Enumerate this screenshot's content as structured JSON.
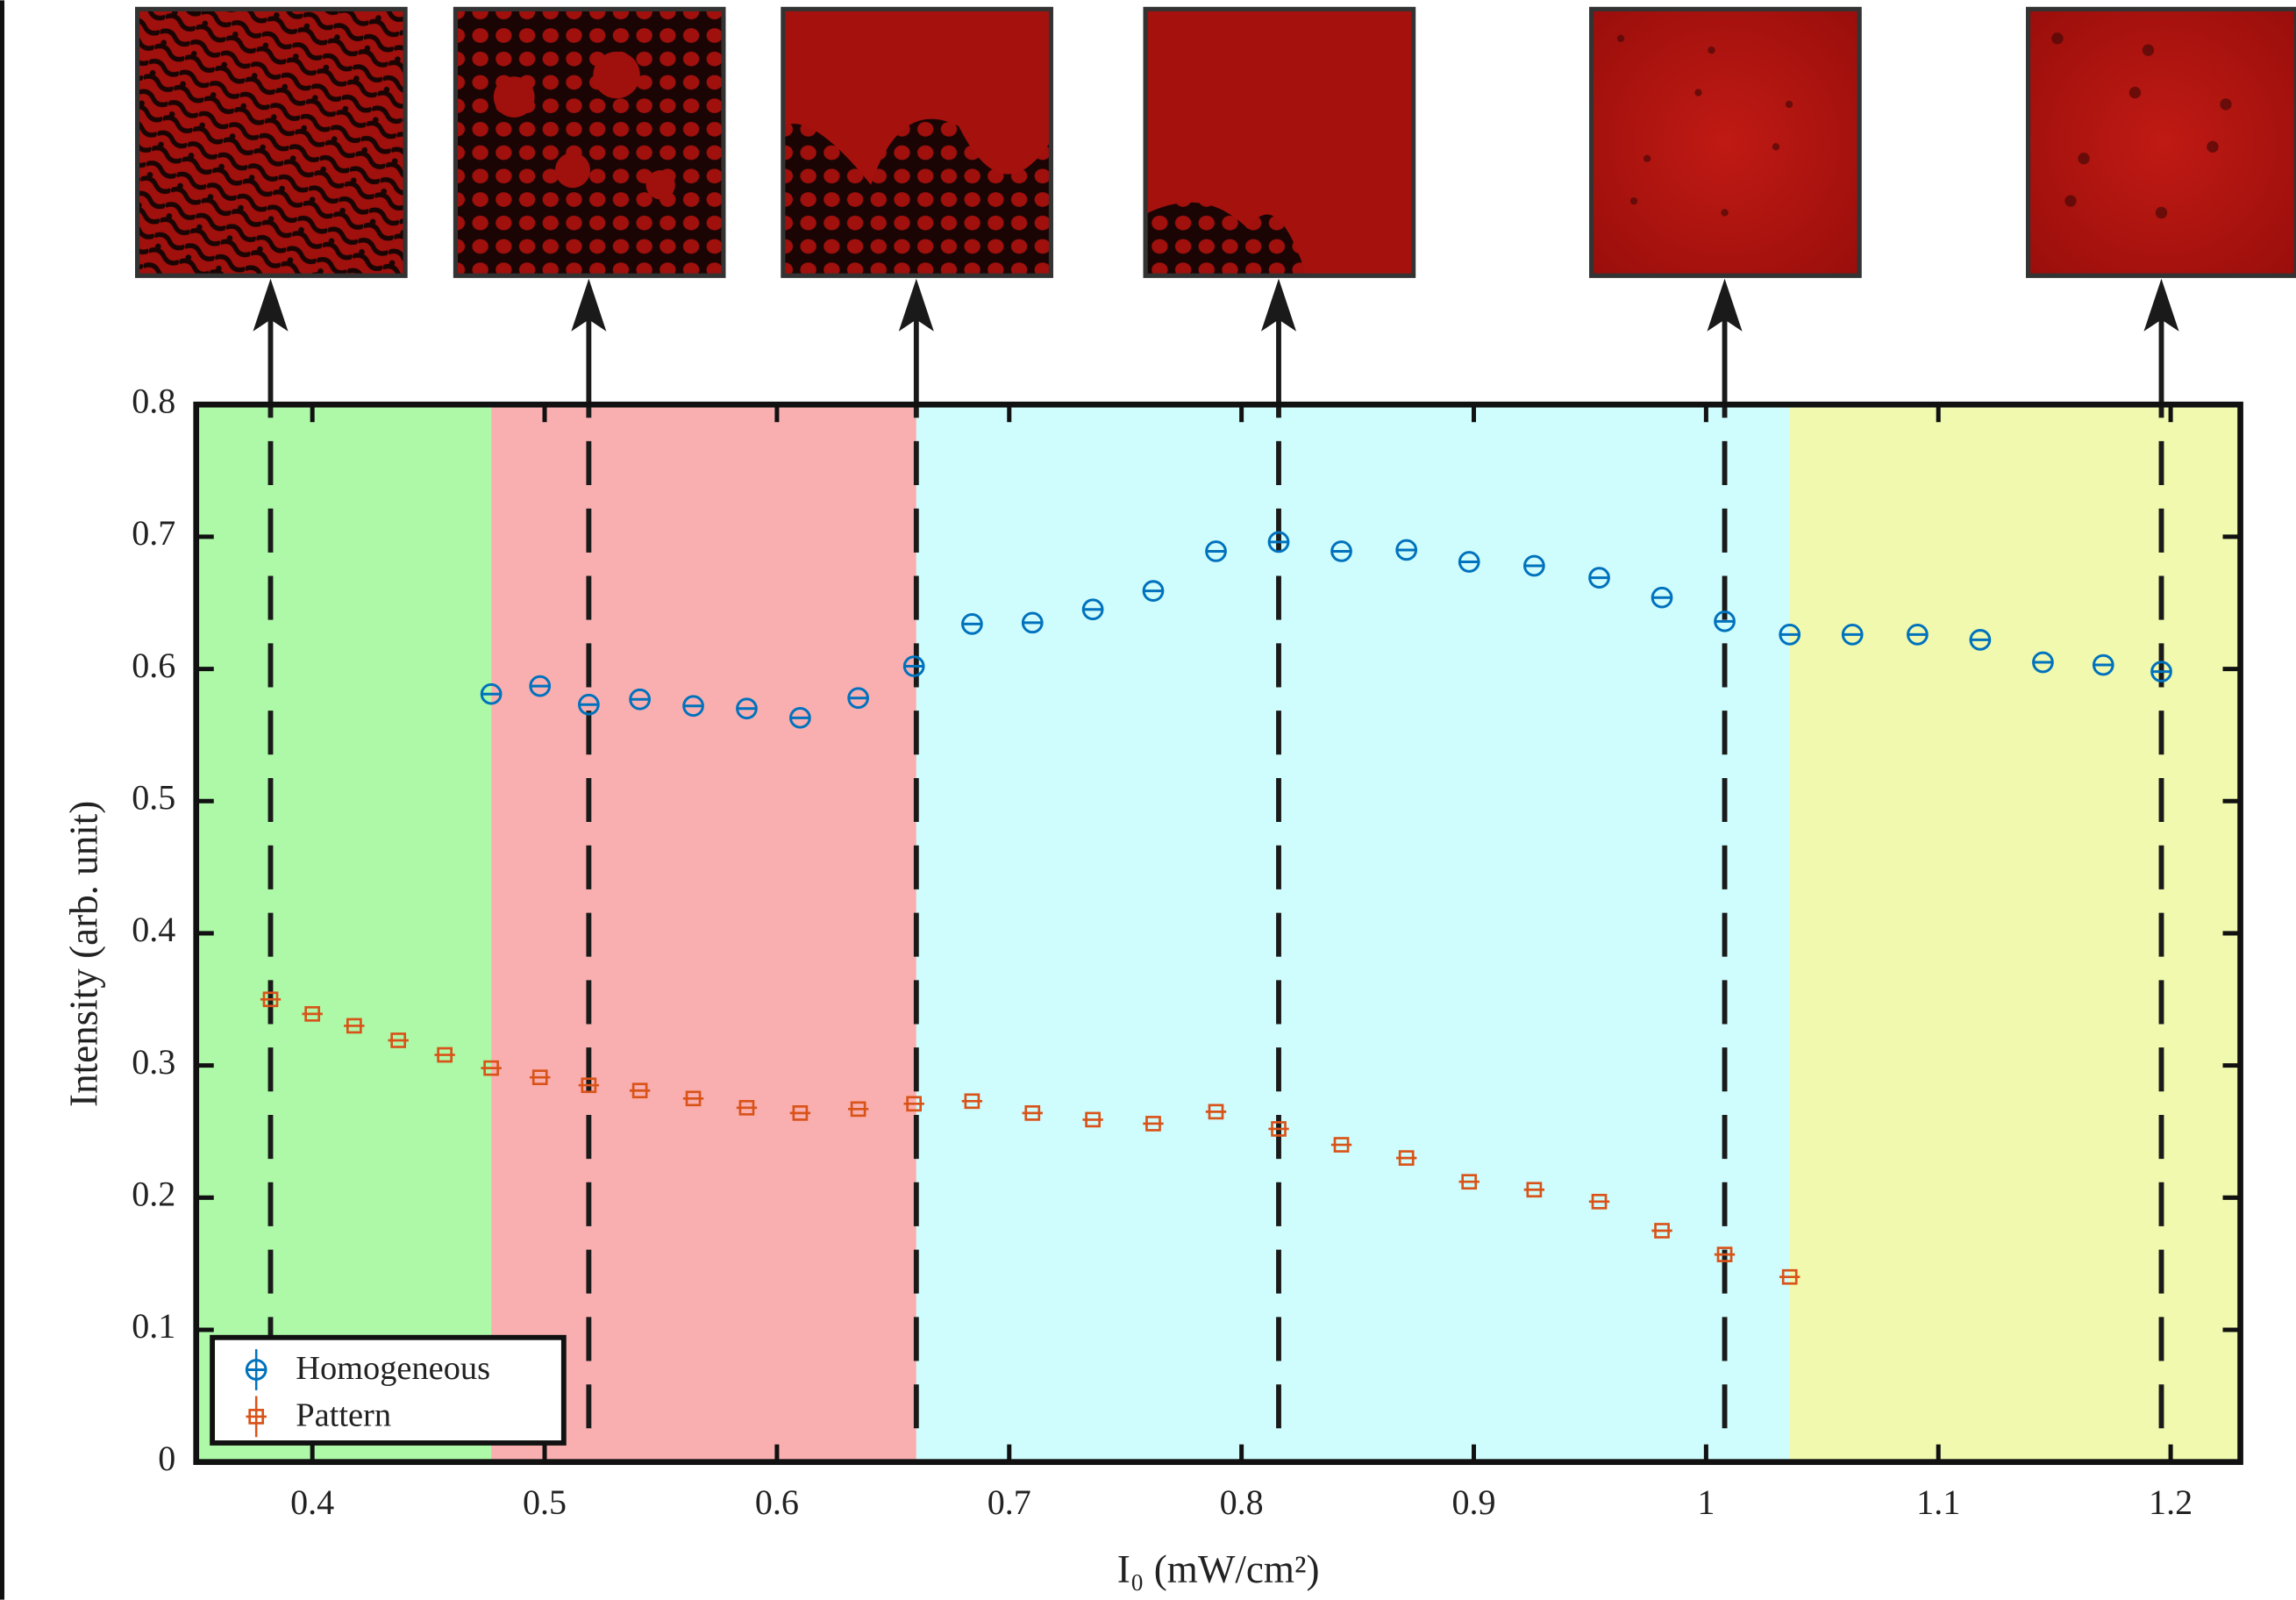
{
  "chart_data": {
    "type": "scatter",
    "x_label": "I₀ (mW/cm²)",
    "y_label": "Intensity (arb. unit)",
    "xlim": [
      0.35,
      1.23
    ],
    "ylim": [
      0,
      0.8
    ],
    "xticks": [
      0.4,
      0.5,
      0.6,
      0.7,
      0.8,
      0.9,
      1,
      1.1,
      1.2
    ],
    "yticks": [
      0,
      0.1,
      0.2,
      0.3,
      0.4,
      0.5,
      0.6,
      0.7,
      0.8
    ],
    "legend": "lower left",
    "regions": [
      {
        "xlim": [
          0.35,
          0.477
        ],
        "color": "#adf9a8"
      },
      {
        "xlim": [
          0.477,
          0.66
        ],
        "color": "#f9afaf"
      },
      {
        "xlim": [
          0.66,
          1.036
        ],
        "color": "#cffcfc"
      },
      {
        "xlim": [
          1.036,
          1.23
        ],
        "color": "#f0f9ae"
      }
    ],
    "markers": [
      0.382,
      0.519,
      0.66,
      0.816,
      1.008,
      1.196
    ],
    "series": [
      {
        "name": "Homogeneous",
        "color": "#0072bd",
        "marker": "o",
        "x": [
          0.477,
          0.498,
          0.519,
          0.541,
          0.564,
          0.587,
          0.61,
          0.635,
          0.659,
          0.684,
          0.71,
          0.736,
          0.762,
          0.789,
          0.816,
          0.843,
          0.871,
          0.898,
          0.926,
          0.954,
          0.981,
          1.008,
          1.036,
          1.063,
          1.091,
          1.118,
          1.145,
          1.171,
          1.196
        ],
        "values": [
          0.581,
          0.587,
          0.573,
          0.577,
          0.572,
          0.57,
          0.563,
          0.578,
          0.602,
          0.634,
          0.635,
          0.645,
          0.659,
          0.689,
          0.696,
          0.689,
          0.69,
          0.681,
          0.678,
          0.669,
          0.654,
          0.636,
          0.626,
          0.626,
          0.626,
          0.622,
          0.605,
          0.603,
          0.598
        ]
      },
      {
        "name": "Pattern",
        "color": "#d95319",
        "marker": "s",
        "x": [
          0.382,
          0.4,
          0.418,
          0.437,
          0.457,
          0.477,
          0.498,
          0.519,
          0.541,
          0.564,
          0.587,
          0.61,
          0.635,
          0.659,
          0.684,
          0.71,
          0.736,
          0.762,
          0.789,
          0.816,
          0.843,
          0.871,
          0.898,
          0.926,
          0.954,
          0.981,
          1.008,
          1.036
        ],
        "values": [
          0.35,
          0.339,
          0.33,
          0.319,
          0.308,
          0.298,
          0.291,
          0.285,
          0.281,
          0.275,
          0.268,
          0.264,
          0.267,
          0.271,
          0.273,
          0.264,
          0.259,
          0.256,
          0.265,
          0.252,
          0.24,
          0.23,
          0.212,
          0.206,
          0.197,
          0.175,
          0.157,
          0.14
        ]
      }
    ]
  }
}
